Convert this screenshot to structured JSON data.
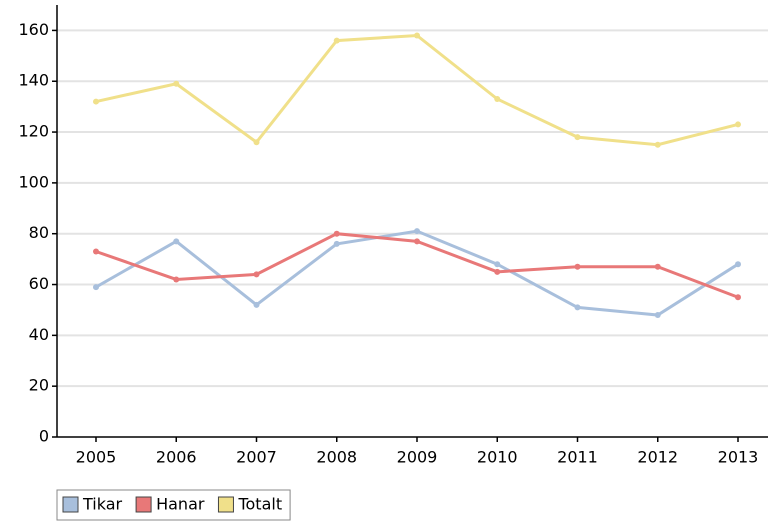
{
  "chart_data": {
    "type": "line",
    "categories": [
      "2005",
      "2006",
      "2007",
      "2008",
      "2009",
      "2010",
      "2011",
      "2012",
      "2013"
    ],
    "series": [
      {
        "name": "Tikar",
        "color": "#a8bfdc",
        "values": [
          59,
          77,
          52,
          76,
          81,
          68,
          51,
          48,
          68
        ]
      },
      {
        "name": "Hanar",
        "color": "#e87878",
        "values": [
          73,
          62,
          64,
          80,
          77,
          65,
          67,
          67,
          55
        ]
      },
      {
        "name": "Totalt",
        "color": "#f0e08a",
        "values": [
          132,
          139,
          116,
          156,
          158,
          133,
          118,
          115,
          123
        ]
      }
    ],
    "ylim": [
      0,
      170
    ],
    "yticks": [
      0,
      20,
      40,
      60,
      80,
      100,
      120,
      140,
      160
    ],
    "grid": true,
    "legend": "bottom-left"
  }
}
